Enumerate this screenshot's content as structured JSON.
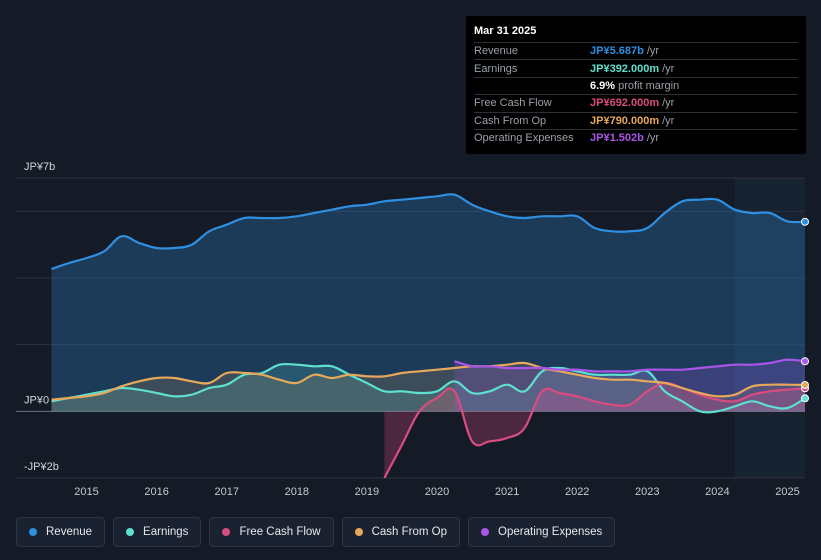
{
  "tooltip": {
    "date": "Mar 31 2025",
    "rows": [
      {
        "label": "Revenue",
        "value": "JP¥5.687b",
        "unit": "/yr",
        "color": "#2f8fe0"
      },
      {
        "label": "Earnings",
        "value": "JP¥392.000m",
        "unit": "/yr",
        "color": "#5ee0d1"
      },
      {
        "label": "",
        "value": "6.9%",
        "unit": "profit margin",
        "color": "#ffffff"
      },
      {
        "label": "Free Cash Flow",
        "value": "JP¥692.000m",
        "unit": "/yr",
        "color": "#d94c80"
      },
      {
        "label": "Cash From Op",
        "value": "JP¥790.000m",
        "unit": "/yr",
        "color": "#e8a85a"
      },
      {
        "label": "Operating Expenses",
        "value": "JP¥1.502b",
        "unit": "/yr",
        "color": "#a955e8"
      }
    ]
  },
  "legend": [
    {
      "label": "Revenue",
      "color": "#2f8fe0"
    },
    {
      "label": "Earnings",
      "color": "#5ee0d1"
    },
    {
      "label": "Free Cash Flow",
      "color": "#d94c80"
    },
    {
      "label": "Cash From Op",
      "color": "#e8a85a"
    },
    {
      "label": "Operating Expenses",
      "color": "#a955e8"
    }
  ],
  "chart_data": {
    "type": "area",
    "title": "",
    "yunit": "JP¥ billions",
    "ylim": [
      -2,
      7
    ],
    "xlim": [
      2014.45,
      2025.25
    ],
    "y_tick_labels": [
      {
        "label": "JP¥7b",
        "value": 7
      },
      {
        "label": "JP¥0",
        "value": 0
      },
      {
        "label": "-JP¥2b",
        "value": -2
      }
    ],
    "x_tick_labels": [
      "2015",
      "2016",
      "2017",
      "2018",
      "2019",
      "2020",
      "2021",
      "2022",
      "2023",
      "2024",
      "2025"
    ],
    "x_ticks": [
      2015,
      2016,
      2017,
      2018,
      2019,
      2020,
      2021,
      2022,
      2023,
      2024,
      2025
    ],
    "forecast_start": 2024.25,
    "series": [
      {
        "name": "Revenue",
        "color": "#2f8fe0",
        "x": [
          2014.5,
          2014.75,
          2015.0,
          2015.25,
          2015.5,
          2015.75,
          2016.0,
          2016.25,
          2016.5,
          2016.75,
          2017.0,
          2017.25,
          2017.5,
          2017.75,
          2018.0,
          2018.25,
          2018.5,
          2018.75,
          2019.0,
          2019.25,
          2019.5,
          2019.75,
          2020.0,
          2020.25,
          2020.5,
          2020.75,
          2021.0,
          2021.25,
          2021.5,
          2021.75,
          2022.0,
          2022.25,
          2022.5,
          2022.75,
          2023.0,
          2023.25,
          2023.5,
          2023.75,
          2024.0,
          2024.25,
          2024.5,
          2024.75,
          2025.0,
          2025.25
        ],
        "values": [
          4.27,
          4.45,
          4.6,
          4.8,
          5.25,
          5.05,
          4.9,
          4.9,
          5.0,
          5.4,
          5.6,
          5.8,
          5.8,
          5.8,
          5.85,
          5.95,
          6.05,
          6.15,
          6.2,
          6.3,
          6.35,
          6.4,
          6.45,
          6.5,
          6.2,
          6.0,
          5.85,
          5.8,
          5.85,
          5.85,
          5.85,
          5.5,
          5.4,
          5.4,
          5.5,
          5.95,
          6.3,
          6.35,
          6.35,
          6.05,
          5.95,
          5.95,
          5.7,
          5.687
        ]
      },
      {
        "name": "Earnings",
        "color": "#5ee0d1",
        "x": [
          2014.5,
          2014.75,
          2015.0,
          2015.25,
          2015.5,
          2015.75,
          2016.0,
          2016.25,
          2016.5,
          2016.75,
          2017.0,
          2017.25,
          2017.5,
          2017.75,
          2018.0,
          2018.25,
          2018.5,
          2018.75,
          2019.0,
          2019.25,
          2019.5,
          2019.75,
          2020.0,
          2020.25,
          2020.5,
          2020.75,
          2021.0,
          2021.25,
          2021.5,
          2021.75,
          2022.0,
          2022.25,
          2022.5,
          2022.75,
          2023.0,
          2023.25,
          2023.5,
          2023.75,
          2024.0,
          2024.25,
          2024.5,
          2024.75,
          2025.0,
          2025.25
        ],
        "values": [
          0.3,
          0.4,
          0.5,
          0.6,
          0.7,
          0.65,
          0.55,
          0.45,
          0.5,
          0.7,
          0.8,
          1.1,
          1.15,
          1.4,
          1.4,
          1.35,
          1.35,
          1.1,
          0.85,
          0.6,
          0.6,
          0.55,
          0.6,
          0.9,
          0.55,
          0.6,
          0.8,
          0.6,
          1.2,
          1.3,
          1.2,
          1.1,
          1.1,
          1.1,
          1.2,
          0.6,
          0.3,
          0.0,
          0.0,
          0.15,
          0.3,
          0.15,
          0.1,
          0.392
        ]
      },
      {
        "name": "Free Cash Flow",
        "color": "#d94c80",
        "x": [
          2019.25,
          2019.5,
          2019.75,
          2020.0,
          2020.25,
          2020.5,
          2020.75,
          2021.0,
          2021.25,
          2021.5,
          2021.75,
          2022.0,
          2022.25,
          2022.5,
          2022.75,
          2023.0,
          2023.25,
          2023.5,
          2023.75,
          2024.0,
          2024.25,
          2024.5,
          2024.75,
          2025.0,
          2025.25
        ],
        "values": [
          -2.0,
          -1.0,
          0.0,
          0.4,
          0.6,
          -0.9,
          -0.9,
          -0.8,
          -0.5,
          0.6,
          0.55,
          0.45,
          0.3,
          0.2,
          0.2,
          0.6,
          0.85,
          0.7,
          0.5,
          0.35,
          0.3,
          0.5,
          0.6,
          0.65,
          0.692
        ]
      },
      {
        "name": "Cash From Op",
        "color": "#e8a85a",
        "x": [
          2014.5,
          2014.75,
          2015.0,
          2015.25,
          2015.5,
          2015.75,
          2016.0,
          2016.25,
          2016.5,
          2016.75,
          2017.0,
          2017.25,
          2017.5,
          2017.75,
          2018.0,
          2018.25,
          2018.5,
          2018.75,
          2019.0,
          2019.25,
          2019.5,
          2019.75,
          2020.0,
          2020.25,
          2020.5,
          2020.75,
          2021.0,
          2021.25,
          2021.5,
          2021.75,
          2022.0,
          2022.25,
          2022.5,
          2022.75,
          2023.0,
          2023.25,
          2023.5,
          2023.75,
          2024.0,
          2024.25,
          2024.5,
          2024.75,
          2025.0,
          2025.25
        ],
        "values": [
          0.35,
          0.4,
          0.45,
          0.55,
          0.75,
          0.9,
          1.0,
          1.0,
          0.9,
          0.85,
          1.15,
          1.15,
          1.1,
          0.95,
          0.85,
          1.1,
          1.0,
          1.1,
          1.05,
          1.05,
          1.15,
          1.2,
          1.25,
          1.3,
          1.35,
          1.35,
          1.4,
          1.45,
          1.3,
          1.2,
          1.1,
          1.0,
          0.95,
          0.95,
          0.9,
          0.85,
          0.7,
          0.55,
          0.45,
          0.5,
          0.75,
          0.8,
          0.8,
          0.79
        ]
      },
      {
        "name": "Operating Expenses",
        "color": "#a955e8",
        "x": [
          2020.25,
          2020.5,
          2020.75,
          2021.0,
          2021.25,
          2021.5,
          2021.75,
          2022.0,
          2022.25,
          2022.5,
          2022.75,
          2023.0,
          2023.25,
          2023.5,
          2023.75,
          2024.0,
          2024.25,
          2024.5,
          2024.75,
          2025.0,
          2025.25
        ],
        "values": [
          1.5,
          1.35,
          1.35,
          1.3,
          1.3,
          1.3,
          1.25,
          1.25,
          1.2,
          1.2,
          1.2,
          1.25,
          1.25,
          1.25,
          1.3,
          1.35,
          1.4,
          1.4,
          1.45,
          1.55,
          1.502
        ]
      }
    ]
  }
}
